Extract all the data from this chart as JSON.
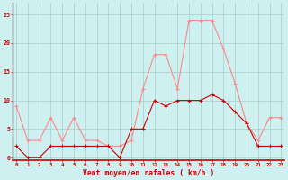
{
  "hours": [
    0,
    1,
    2,
    3,
    4,
    5,
    6,
    7,
    8,
    9,
    10,
    11,
    12,
    13,
    14,
    15,
    16,
    17,
    18,
    19,
    20,
    21,
    22,
    23
  ],
  "mean_wind": [
    2,
    0,
    0,
    2,
    2,
    2,
    2,
    2,
    2,
    0,
    5,
    5,
    10,
    9,
    10,
    10,
    10,
    11,
    10,
    8,
    6,
    2,
    2,
    2
  ],
  "gust_wind": [
    9,
    3,
    3,
    7,
    3,
    7,
    3,
    3,
    2,
    2,
    3,
    12,
    18,
    18,
    12,
    24,
    24,
    24,
    19,
    13,
    6,
    3,
    7,
    7
  ],
  "bg_color": "#cef0f0",
  "grid_color": "#aacccc",
  "mean_color": "#cc0000",
  "gust_color": "#ff8888",
  "xlabel": "Vent moyen/en rafales ( km/h )",
  "xlabel_color": "#cc0000",
  "yticks": [
    0,
    5,
    10,
    15,
    20,
    25
  ],
  "ylim": [
    -0.5,
    27
  ],
  "xlim": [
    -0.3,
    23.3
  ]
}
